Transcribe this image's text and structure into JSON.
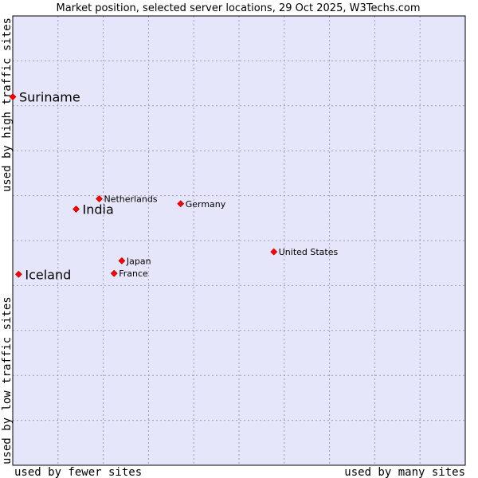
{
  "chart_data": {
    "type": "scatter",
    "title": "Market position, selected server locations, 29 Oct 2025, W3Techs.com",
    "xlabel_left": "used by fewer sites",
    "xlabel_right": "used by many sites",
    "ylabel_bottom": "used by low traffic sites",
    "ylabel_top": "used by high traffic sites",
    "xlim": [
      0,
      100
    ],
    "ylim": [
      0,
      100
    ],
    "grid": true,
    "colors": {
      "plot_bg": "#e6e6fa",
      "grid": "#9a9ab8",
      "marker": "#ff0000"
    },
    "points": [
      {
        "name": "Suriname",
        "x": 0,
        "y": 82,
        "emphasis": true
      },
      {
        "name": "India",
        "x": 14,
        "y": 57,
        "emphasis": true
      },
      {
        "name": "Iceland",
        "x": 1.3,
        "y": 42.5,
        "emphasis": true
      },
      {
        "name": "Netherlands",
        "x": 19.1,
        "y": 59.3,
        "emphasis": false
      },
      {
        "name": "Germany",
        "x": 37.1,
        "y": 58.2,
        "emphasis": false
      },
      {
        "name": "United States",
        "x": 57.7,
        "y": 47.5,
        "emphasis": false
      },
      {
        "name": "Japan",
        "x": 24.1,
        "y": 45.5,
        "emphasis": false
      },
      {
        "name": "France",
        "x": 22.4,
        "y": 42.7,
        "emphasis": false
      }
    ]
  }
}
